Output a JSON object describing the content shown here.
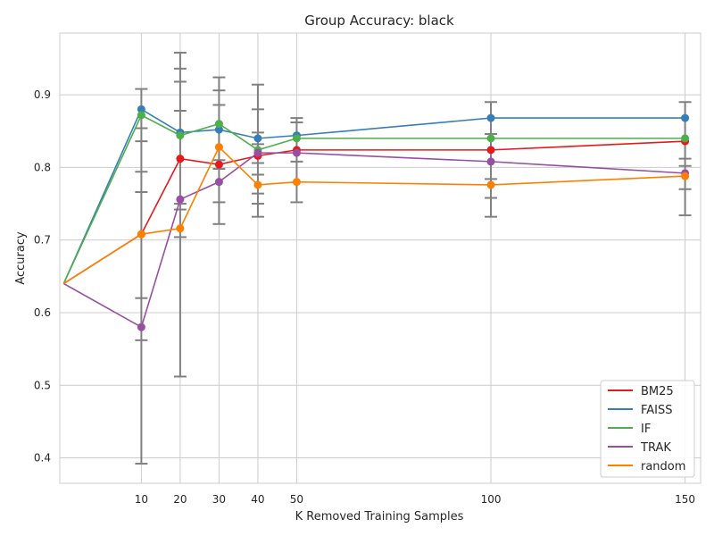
{
  "chart_data": {
    "type": "line",
    "title": "Group Accuracy: black",
    "xlabel": "K Removed Training Samples",
    "ylabel": "Accuracy",
    "xlim": [
      -11,
      154
    ],
    "ylim": [
      0.365,
      0.985
    ],
    "x_ticks": [
      10,
      20,
      30,
      40,
      50,
      100,
      150
    ],
    "y_ticks": [
      0.4,
      0.5,
      0.6,
      0.7,
      0.8,
      0.9
    ],
    "x_tick_labels": [
      "10",
      "20",
      "30",
      "40",
      "50",
      "100",
      "150"
    ],
    "y_tick_labels": [
      "0.4",
      "0.5",
      "0.6",
      "0.7",
      "0.8",
      "0.9"
    ],
    "grid": true,
    "legend_position": "lower-right",
    "baseline": {
      "x": -10,
      "y": 0.64
    },
    "x": [
      10,
      20,
      30,
      40,
      50,
      100,
      150
    ],
    "series": [
      {
        "name": "BM25",
        "color": "#e41a1c",
        "values": [
          0.708,
          0.812,
          0.804,
          0.816,
          0.824,
          0.824,
          0.836
        ],
        "error": [
          0.0,
          0.0,
          0.0,
          0.0,
          0.0,
          0.0,
          0.0
        ]
      },
      {
        "name": "FAISS",
        "color": "#377eb8",
        "values": [
          0.88,
          0.848,
          0.852,
          0.84,
          0.844,
          0.868,
          0.868
        ],
        "error": [
          0.027,
          0.032,
          0.054,
          0.041,
          0.024,
          0.022,
          0.022
        ]
      },
      {
        "name": "IF",
        "color": "#4daf4a",
        "values": [
          0.872,
          0.844,
          0.86,
          0.824,
          0.84,
          0.84,
          0.84
        ],
        "error": [
          0.036,
          0.112,
          0.064,
          0.092,
          0.028,
          0.006,
          0.0
        ]
      },
      {
        "name": "TRAK",
        "color": "#984ea3",
        "values": [
          0.58,
          0.756,
          0.78,
          0.82,
          0.82,
          0.808,
          0.792
        ],
        "error": [
          0.187,
          0.0,
          0.0,
          0.0,
          0.0,
          0.0,
          0.0
        ]
      },
      {
        "name": "random",
        "color": "#ff7f00",
        "values": [
          0.708,
          0.716,
          0.828,
          0.776,
          0.78,
          0.776,
          0.788
        ],
        "error": [
          0.0,
          0.0,
          0.0,
          0.0,
          0.0,
          0.0,
          0.0
        ]
      }
    ],
    "errorbars": [
      {
        "x": 10,
        "low": 0.392,
        "high": 0.908,
        "caps": [
          0.392,
          0.562,
          0.62,
          0.766,
          0.794,
          0.836,
          0.854,
          0.908
        ]
      },
      {
        "x": 20,
        "low": 0.512,
        "high": 0.958,
        "caps": [
          0.512,
          0.704,
          0.742,
          0.75,
          0.878,
          0.918,
          0.936,
          0.958
        ]
      },
      {
        "x": 30,
        "low": 0.722,
        "high": 0.924,
        "caps": [
          0.722,
          0.752,
          0.798,
          0.81,
          0.886,
          0.906,
          0.924
        ]
      },
      {
        "x": 40,
        "low": 0.732,
        "high": 0.914,
        "caps": [
          0.732,
          0.75,
          0.764,
          0.79,
          0.806,
          0.832,
          0.848,
          0.88,
          0.914
        ]
      },
      {
        "x": 50,
        "low": 0.752,
        "high": 0.868,
        "caps": [
          0.752,
          0.808,
          0.862,
          0.868
        ]
      },
      {
        "x": 100,
        "low": 0.732,
        "high": 0.89,
        "caps": [
          0.732,
          0.758,
          0.784,
          0.846,
          0.89
        ]
      },
      {
        "x": 150,
        "low": 0.734,
        "high": 0.89,
        "caps": [
          0.734,
          0.77,
          0.802,
          0.812,
          0.89
        ]
      }
    ],
    "errorbar_color": "#808080"
  }
}
